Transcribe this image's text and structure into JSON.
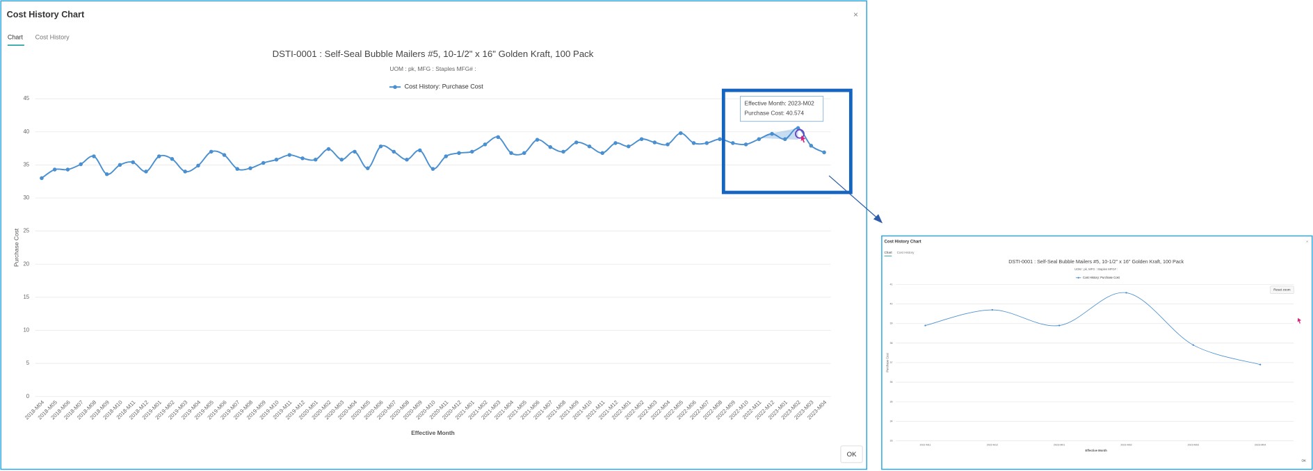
{
  "dialog": {
    "title": "Cost History Chart",
    "tabs": [
      "Chart",
      "Cost History"
    ],
    "close": "×",
    "ok": "OK"
  },
  "zoom_dialog": {
    "title": "Cost History Chart",
    "tabs": [
      "Chart",
      "Cost History"
    ],
    "close": "×",
    "ok": "OK",
    "reset_zoom": "Reset zoom"
  },
  "chart_data": [
    {
      "type": "line",
      "title": "DSTI-0001 : Self-Seal Bubble Mailers #5, 10-1/2\" x 16\" Golden Kraft, 100 Pack",
      "subtitle": "UOM : pk, MFG : Staples MFG# :",
      "x_label": "Effective Month",
      "y_label": "Purchase Cost",
      "categories": [
        "2018-M04",
        "2018-M05",
        "2018-M06",
        "2018-M07",
        "2018-M08",
        "2018-M09",
        "2018-M10",
        "2018-M11",
        "2018-M12",
        "2019-M01",
        "2019-M02",
        "2019-M03",
        "2019-M04",
        "2019-M05",
        "2019-M06",
        "2019-M07",
        "2019-M08",
        "2019-M09",
        "2019-M10",
        "2019-M11",
        "2019-M12",
        "2020-M01",
        "2020-M02",
        "2020-M03",
        "2020-M04",
        "2020-M05",
        "2020-M06",
        "2020-M07",
        "2020-M08",
        "2020-M09",
        "2020-M10",
        "2020-M11",
        "2020-M12",
        "2021-M01",
        "2021-M02",
        "2021-M03",
        "2021-M04",
        "2021-M05",
        "2021-M06",
        "2021-M07",
        "2021-M08",
        "2021-M09",
        "2021-M10",
        "2021-M11",
        "2021-M12",
        "2022-M01",
        "2022-M02",
        "2022-M03",
        "2022-M04",
        "2022-M05",
        "2022-M06",
        "2022-M07",
        "2022-M08",
        "2022-M09",
        "2022-M10",
        "2022-M11",
        "2022-M12",
        "2023-M01",
        "2023-M02",
        "2023-M03",
        "2023-M04"
      ],
      "series": [
        {
          "name": "Cost History: Purchase Cost",
          "color": "#4a8fd0",
          "values": [
            33.0,
            34.3,
            34.3,
            35.1,
            36.3,
            33.6,
            35.0,
            35.4,
            34.0,
            36.3,
            35.9,
            34.0,
            34.9,
            37.0,
            36.5,
            34.4,
            34.5,
            35.3,
            35.8,
            36.5,
            36.0,
            35.8,
            37.4,
            35.8,
            37.0,
            34.5,
            37.8,
            37.0,
            35.8,
            37.2,
            34.4,
            36.3,
            36.8,
            37.0,
            38.1,
            39.2,
            36.8,
            36.8,
            38.8,
            37.7,
            37.0,
            38.4,
            37.8,
            36.8,
            38.3,
            37.8,
            38.9,
            38.4,
            38.1,
            39.8,
            38.3,
            38.3,
            38.9,
            38.3,
            38.1,
            38.9,
            39.7,
            38.9,
            40.574,
            37.9,
            36.9
          ]
        }
      ],
      "ylim": [
        0,
        45
      ],
      "yticks": [
        0,
        5,
        10,
        15,
        20,
        25,
        30,
        35,
        40,
        45
      ],
      "grid": true,
      "tooltip": [
        "Effective Month: 2023-M02",
        "Purchase Cost: 40.574"
      ]
    },
    {
      "type": "line",
      "title": "DSTI-0001 : Self-Seal Bubble Mailers #5, 10-1/2\" x 16\" Golden Kraft, 100 Pack",
      "subtitle": "UOM : pk, MFG : Staples MFG# :",
      "x_label": "Effective Month",
      "y_label": "Purchase Cost",
      "categories": [
        "2022-M11",
        "2022-M12",
        "2023-M01",
        "2023-M02",
        "2023-M03",
        "2023-M04"
      ],
      "series": [
        {
          "name": "Cost History: Purchase Cost",
          "color": "#4a8fd0",
          "values": [
            38.9,
            39.7,
            38.9,
            40.574,
            37.9,
            36.9
          ]
        }
      ],
      "ylim": [
        33,
        41
      ],
      "yticks": [
        33,
        34,
        35,
        36,
        37,
        38,
        39,
        40,
        41
      ],
      "grid": true
    }
  ]
}
